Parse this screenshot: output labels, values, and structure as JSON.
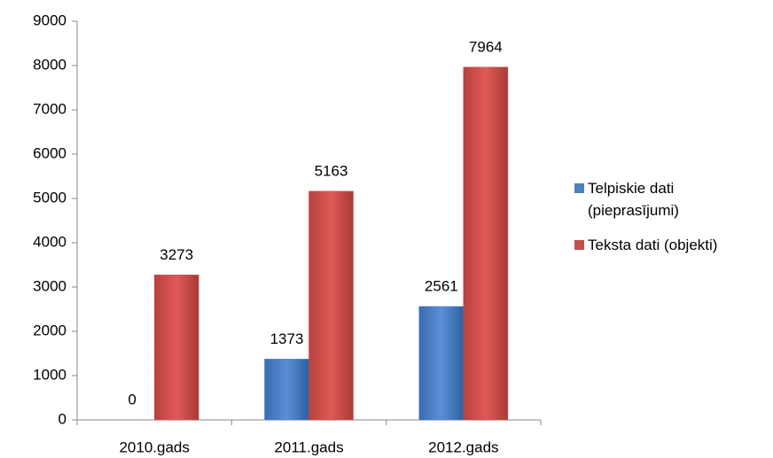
{
  "chart_data": {
    "type": "bar",
    "categories": [
      "2010.gads",
      "2011.gads",
      "2012.gads"
    ],
    "series": [
      {
        "name": "Telpiskie dati (pieprasījumi)",
        "color": "#4f81bd",
        "values": [
          0,
          1373,
          2561
        ]
      },
      {
        "name": "Teksta dati (objekti)",
        "color": "#c0504d",
        "values": [
          3273,
          5163,
          7964
        ]
      }
    ],
    "ylim": [
      0,
      9000
    ],
    "yticks": [
      0,
      1000,
      2000,
      3000,
      4000,
      5000,
      6000,
      7000,
      8000,
      9000
    ],
    "legend": "right"
  }
}
